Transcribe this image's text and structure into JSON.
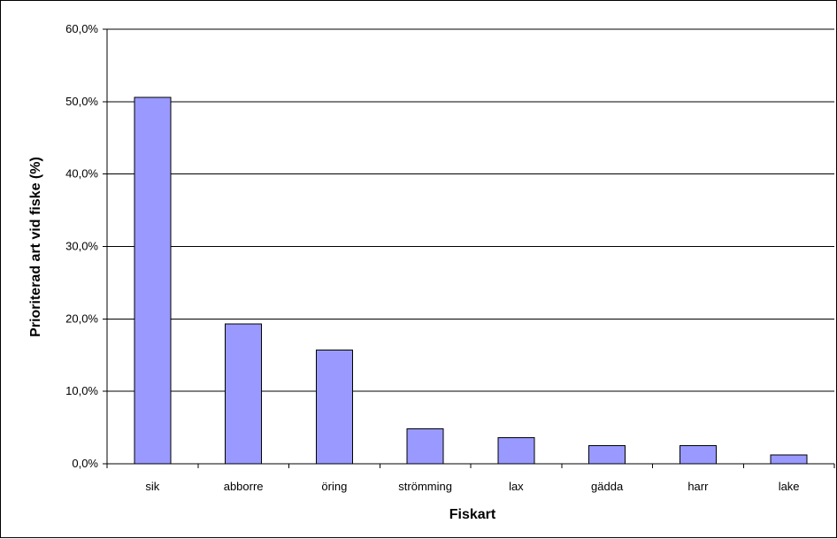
{
  "chart_data": {
    "type": "bar",
    "title": "",
    "xlabel": "Fiskart",
    "ylabel": "Prioriterad art vid fiske (%)",
    "categories": [
      "sik",
      "abborre",
      "öring",
      "strömming",
      "lax",
      "gädda",
      "harr",
      "lake"
    ],
    "values": [
      50.6,
      19.3,
      15.7,
      4.8,
      3.6,
      2.5,
      2.5,
      1.2
    ],
    "ylim": [
      0,
      60
    ],
    "yticks": [
      0,
      10,
      20,
      30,
      40,
      50,
      60
    ],
    "ytick_labels": [
      "0,0%",
      "10,0%",
      "20,0%",
      "30,0%",
      "40,0%",
      "50,0%",
      "60,0%"
    ],
    "grid": true,
    "legend": "none",
    "bar_color": "#9999ff",
    "bar_edge_color": "#000000",
    "grid_color": "#000000"
  }
}
